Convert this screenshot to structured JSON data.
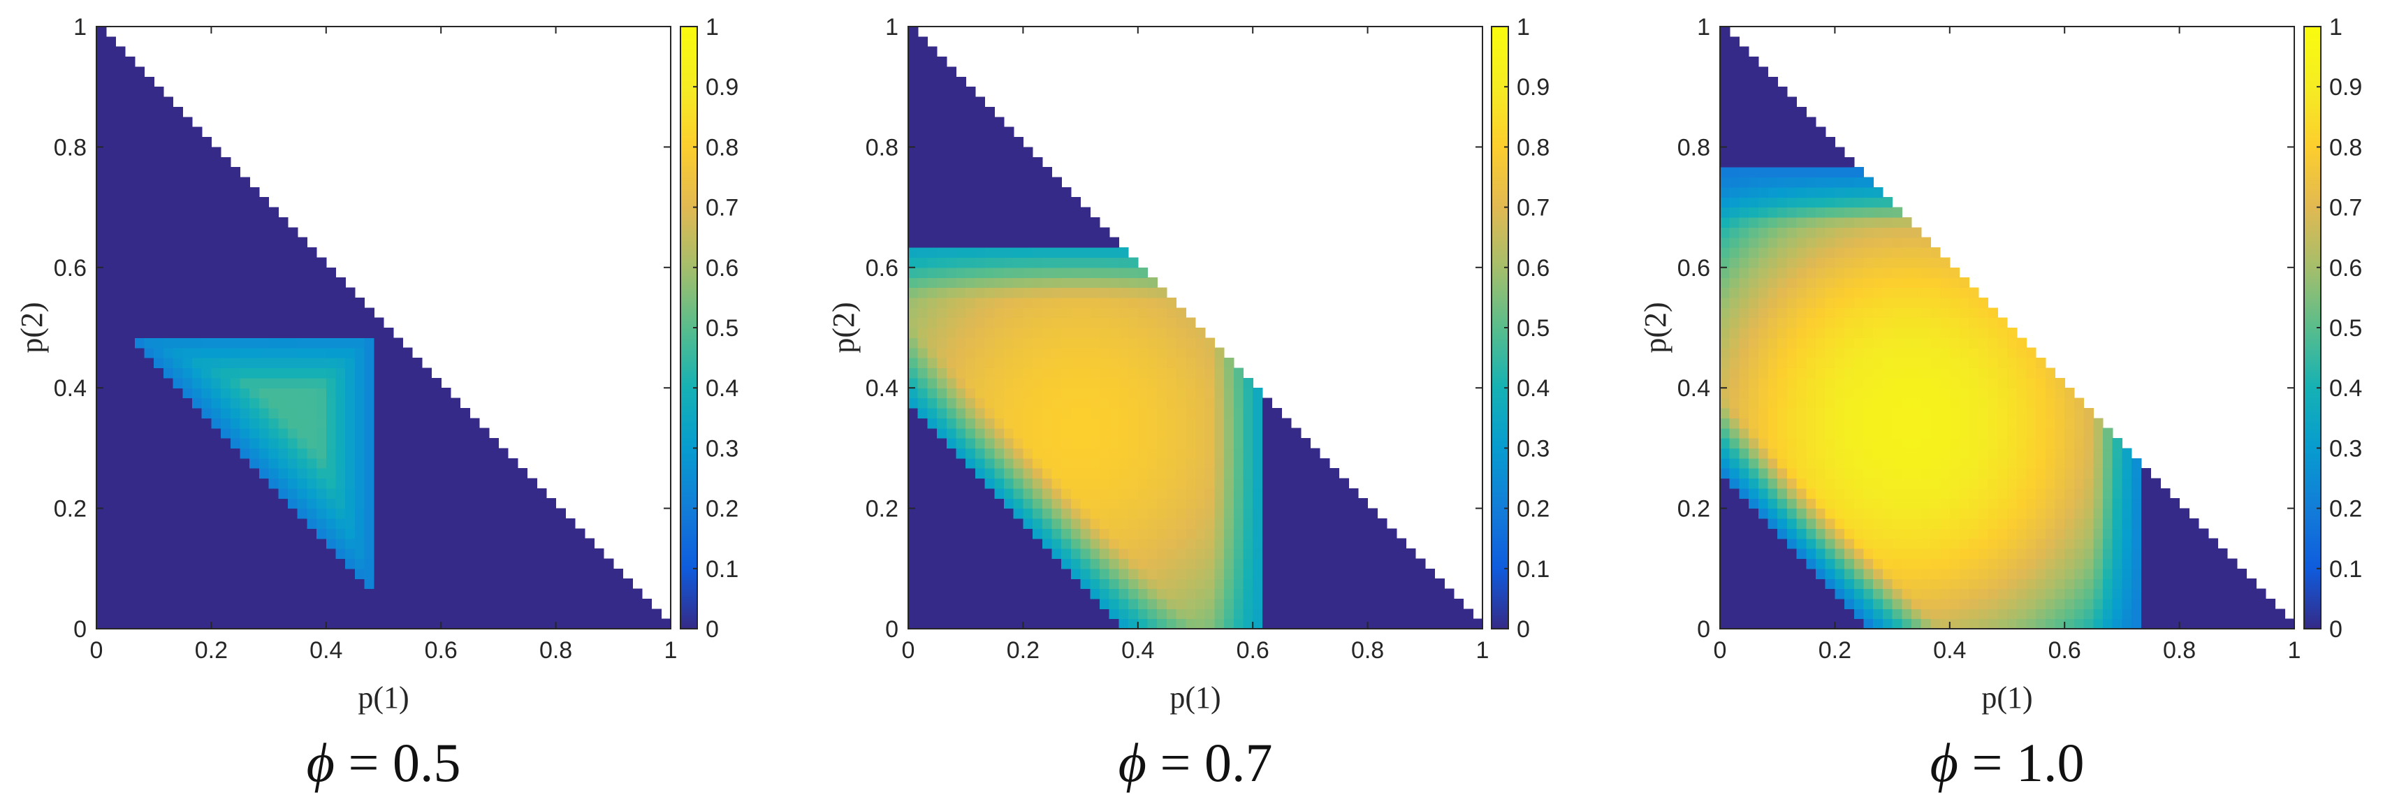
{
  "chart_data": [
    {
      "type": "heatmap",
      "caption": {
        "symbol": "ϕ",
        "operator": " = ",
        "value": "0.5"
      },
      "xlabel": "p(1)",
      "ylabel": "p(2)",
      "xlim": [
        0,
        1
      ],
      "ylim": [
        0,
        1
      ],
      "xticks": [
        "0",
        "0.2",
        "0.4",
        "0.6",
        "0.8",
        "1"
      ],
      "yticks": [
        "0",
        "0.2",
        "0.4",
        "0.6",
        "0.8",
        "1"
      ],
      "colorbar": {
        "range": [
          0,
          1
        ],
        "ticks": [
          "0",
          "0.1",
          "0.2",
          "0.3",
          "0.4",
          "0.5",
          "0.6",
          "0.7",
          "0.8",
          "0.9",
          "1"
        ],
        "colormap": "parula"
      },
      "grid": false,
      "domain": "simplex p(1) + p(2) <= 1",
      "region": {
        "shape": "triangle",
        "p1_min": 0.06,
        "p2_max": 0.49,
        "sum_min": 0.55,
        "p1_max": 0.48,
        "p2_min": 0.07,
        "peak_value": 0.47,
        "edge_value": 0.22,
        "peak_at": [
          0.32,
          0.34
        ]
      },
      "background_value": 0
    },
    {
      "type": "heatmap",
      "caption": {
        "symbol": "ϕ",
        "operator": " = ",
        "value": "0.7"
      },
      "xlabel": "p(1)",
      "ylabel": "p(2)",
      "xlim": [
        0,
        1
      ],
      "ylim": [
        0,
        1
      ],
      "xticks": [
        "0",
        "0.2",
        "0.4",
        "0.6",
        "0.8",
        "1"
      ],
      "yticks": [
        "0",
        "0.2",
        "0.4",
        "0.6",
        "0.8",
        "1"
      ],
      "colorbar": {
        "range": [
          0,
          1
        ],
        "ticks": [
          "0",
          "0.1",
          "0.2",
          "0.3",
          "0.4",
          "0.5",
          "0.6",
          "0.7",
          "0.8",
          "0.9",
          "1"
        ],
        "colormap": "parula"
      },
      "grid": false,
      "domain": "simplex p(1) + p(2) <= 1",
      "region": {
        "shape": "band",
        "p1_min": 0.0,
        "p2_max": 0.64,
        "sum_min": 0.38,
        "p1_max": 0.62,
        "p2_min": 0.0,
        "peak_value": 0.8,
        "edge_value": 0.32,
        "peak_at": [
          0.3,
          0.33
        ]
      },
      "background_value": 0
    },
    {
      "type": "heatmap",
      "caption": {
        "symbol": "ϕ",
        "operator": " = ",
        "value": "1.0"
      },
      "xlabel": "p(1)",
      "ylabel": "p(2)",
      "xlim": [
        0,
        1
      ],
      "ylim": [
        0,
        1
      ],
      "xticks": [
        "0",
        "0.2",
        "0.4",
        "0.6",
        "0.8",
        "1"
      ],
      "yticks": [
        "0",
        "0.2",
        "0.4",
        "0.6",
        "0.8",
        "1"
      ],
      "colorbar": {
        "range": [
          0,
          1
        ],
        "ticks": [
          "0",
          "0.1",
          "0.2",
          "0.3",
          "0.4",
          "0.5",
          "0.6",
          "0.7",
          "0.8",
          "0.9",
          "1"
        ],
        "colormap": "parula"
      },
      "grid": false,
      "domain": "simplex p(1) + p(2) <= 1",
      "region": {
        "shape": "band",
        "p1_min": 0.0,
        "p2_max": 0.76,
        "sum_min": 0.26,
        "p1_max": 0.74,
        "p2_min": 0.0,
        "peak_value": 0.94,
        "edge_value": 0.2,
        "peak_at": [
          0.33,
          0.34
        ]
      },
      "background_value": 0
    }
  ]
}
